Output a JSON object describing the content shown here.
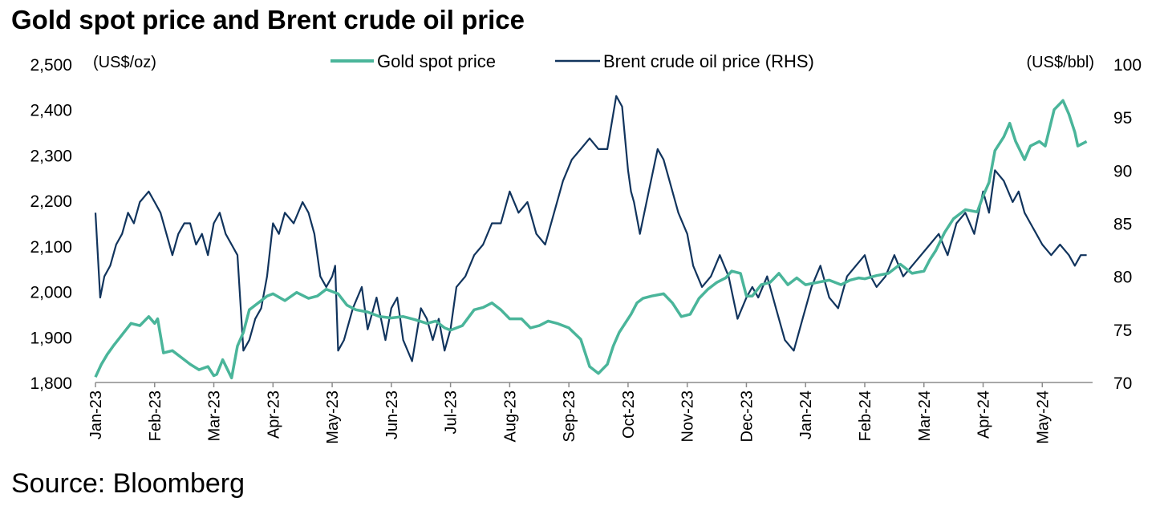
{
  "chart_data": {
    "type": "line",
    "title": "Gold spot price and Brent crude oil price",
    "source": "Source: Bloomberg",
    "y_left": {
      "unit_label": "(US$/oz)",
      "min": 1800,
      "max": 2500,
      "ticks": [
        "1,800",
        "1,900",
        "2,000",
        "2,100",
        "2,200",
        "2,300",
        "2,400",
        "2,500"
      ]
    },
    "y_right": {
      "unit_label": "(US$/bbl)",
      "min": 70,
      "max": 100,
      "ticks": [
        "70",
        "75",
        "80",
        "85",
        "90",
        "95",
        "100"
      ]
    },
    "x_ticks": [
      "Jan-23",
      "Feb-23",
      "Mar-23",
      "Apr-23",
      "May-23",
      "Jun-23",
      "Jul-23",
      "Aug-23",
      "Sep-23",
      "Oct-23",
      "Nov-23",
      "Dec-23",
      "Jan-24",
      "Feb-24",
      "Mar-24",
      "Apr-24",
      "May-24"
    ],
    "x_tick_months": [
      0,
      1,
      2,
      3,
      4,
      5,
      6,
      7,
      8,
      9,
      10,
      11,
      12,
      13,
      14,
      15,
      16
    ],
    "x_range_months": [
      0,
      16.85
    ],
    "legend": [
      "Gold spot price",
      "Brent crude oil price (RHS)"
    ],
    "series": [
      {
        "name": "Gold spot price",
        "axis": "left",
        "color": "#4ab59a",
        "x": [
          0,
          0.1,
          0.2,
          0.3,
          0.45,
          0.6,
          0.75,
          0.9,
          1.0,
          1.05,
          1.15,
          1.3,
          1.5,
          1.6,
          1.75,
          1.9,
          2.0,
          2.05,
          2.15,
          2.3,
          2.4,
          2.5,
          2.6,
          2.75,
          2.9,
          3.0,
          3.2,
          3.4,
          3.6,
          3.75,
          3.9,
          4.0,
          4.1,
          4.25,
          4.4,
          4.6,
          4.8,
          5.0,
          5.2,
          5.4,
          5.6,
          5.75,
          5.9,
          6.0,
          6.2,
          6.4,
          6.55,
          6.7,
          6.85,
          7.0,
          7.2,
          7.35,
          7.5,
          7.65,
          7.8,
          8.0,
          8.2,
          8.35,
          8.5,
          8.65,
          8.75,
          8.85,
          8.95,
          9.05,
          9.15,
          9.25,
          9.4,
          9.6,
          9.75,
          9.9,
          10.05,
          10.2,
          10.35,
          10.5,
          10.65,
          10.75,
          10.9,
          11.0,
          11.1,
          11.25,
          11.4,
          11.55,
          11.7,
          11.85,
          12.0,
          12.2,
          12.4,
          12.6,
          12.75,
          12.9,
          13.0,
          13.2,
          13.4,
          13.6,
          13.8,
          14.0,
          14.1,
          14.2,
          14.35,
          14.5,
          14.7,
          14.9,
          15.0,
          15.1,
          15.2,
          15.35,
          15.45,
          15.55,
          15.7,
          15.8,
          15.95,
          16.05,
          16.2,
          16.35,
          16.45,
          16.55,
          16.6,
          16.75
        ],
        "values": [
          1812,
          1840,
          1862,
          1880,
          1905,
          1930,
          1925,
          1945,
          1930,
          1940,
          1865,
          1870,
          1850,
          1840,
          1828,
          1835,
          1815,
          1818,
          1850,
          1810,
          1880,
          1910,
          1960,
          1975,
          1990,
          1995,
          1980,
          1998,
          1985,
          1990,
          2005,
          2000,
          1995,
          1970,
          1960,
          1955,
          1945,
          1942,
          1945,
          1938,
          1930,
          1935,
          1920,
          1915,
          1925,
          1960,
          1965,
          1975,
          1960,
          1940,
          1940,
          1920,
          1925,
          1935,
          1930,
          1920,
          1895,
          1835,
          1820,
          1840,
          1880,
          1910,
          1930,
          1950,
          1975,
          1985,
          1990,
          1995,
          1975,
          1945,
          1950,
          1985,
          2005,
          2020,
          2030,
          2045,
          2040,
          1990,
          1990,
          2015,
          2020,
          2040,
          2015,
          2030,
          2015,
          2020,
          2025,
          2015,
          2025,
          2030,
          2028,
          2035,
          2040,
          2060,
          2040,
          2045,
          2070,
          2090,
          2130,
          2160,
          2180,
          2175,
          2210,
          2240,
          2310,
          2340,
          2370,
          2330,
          2290,
          2320,
          2330,
          2320,
          2400,
          2420,
          2390,
          2350,
          2320,
          2330
        ]
      },
      {
        "name": "Brent crude oil price (RHS)",
        "axis": "right",
        "color": "#11345d",
        "x": [
          0,
          0.08,
          0.15,
          0.25,
          0.35,
          0.45,
          0.55,
          0.65,
          0.75,
          0.9,
          1.0,
          1.1,
          1.2,
          1.3,
          1.4,
          1.5,
          1.6,
          1.7,
          1.8,
          1.9,
          2.0,
          2.1,
          2.2,
          2.3,
          2.4,
          2.5,
          2.6,
          2.7,
          2.8,
          2.9,
          3.0,
          3.1,
          3.2,
          3.35,
          3.5,
          3.6,
          3.7,
          3.8,
          3.9,
          4.0,
          4.05,
          4.1,
          4.2,
          4.35,
          4.5,
          4.6,
          4.75,
          4.9,
          5.0,
          5.1,
          5.2,
          5.35,
          5.5,
          5.6,
          5.7,
          5.8,
          5.9,
          6.0,
          6.1,
          6.25,
          6.4,
          6.55,
          6.7,
          6.85,
          7.0,
          7.15,
          7.3,
          7.45,
          7.6,
          7.75,
          7.9,
          8.05,
          8.2,
          8.35,
          8.5,
          8.65,
          8.8,
          8.9,
          9.0,
          9.05,
          9.1,
          9.2,
          9.35,
          9.5,
          9.6,
          9.7,
          9.85,
          10.0,
          10.1,
          10.25,
          10.4,
          10.55,
          10.7,
          10.85,
          11.0,
          11.1,
          11.2,
          11.35,
          11.5,
          11.65,
          11.8,
          11.95,
          12.1,
          12.25,
          12.4,
          12.55,
          12.7,
          12.85,
          13.0,
          13.1,
          13.2,
          13.35,
          13.5,
          13.65,
          13.8,
          13.95,
          14.1,
          14.25,
          14.4,
          14.55,
          14.7,
          14.85,
          15.0,
          15.1,
          15.2,
          15.35,
          15.5,
          15.6,
          15.7,
          15.8,
          15.9,
          16.0,
          16.15,
          16.3,
          16.45,
          16.55,
          16.65,
          16.75
        ],
        "values": [
          86,
          78,
          80,
          81,
          83,
          84,
          86,
          85,
          87,
          88,
          87,
          86,
          84,
          82,
          84,
          85,
          85,
          83,
          84,
          82,
          85,
          86,
          84,
          83,
          82,
          73,
          74,
          76,
          77,
          80,
          85,
          84,
          86,
          85,
          87,
          86,
          84,
          80,
          79,
          80,
          81,
          73,
          74,
          77,
          79,
          75,
          78,
          74,
          77,
          78,
          74,
          72,
          77,
          76,
          74,
          76,
          73,
          75,
          79,
          80,
          82,
          83,
          85,
          85,
          88,
          86,
          87,
          84,
          83,
          86,
          89,
          91,
          92,
          93,
          92,
          92,
          97,
          96,
          90,
          88,
          87,
          84,
          88,
          92,
          91,
          89,
          86,
          84,
          81,
          79,
          80,
          82,
          80,
          76,
          78,
          79,
          78,
          80,
          77,
          74,
          73,
          76,
          79,
          81,
          78,
          77,
          80,
          81,
          82,
          80,
          79,
          80,
          82,
          80,
          81,
          82,
          83,
          84,
          82,
          85,
          86,
          84,
          88,
          86,
          90,
          89,
          87,
          88,
          86,
          85,
          84,
          83,
          82,
          83,
          82,
          81,
          82,
          82
        ]
      }
    ]
  }
}
